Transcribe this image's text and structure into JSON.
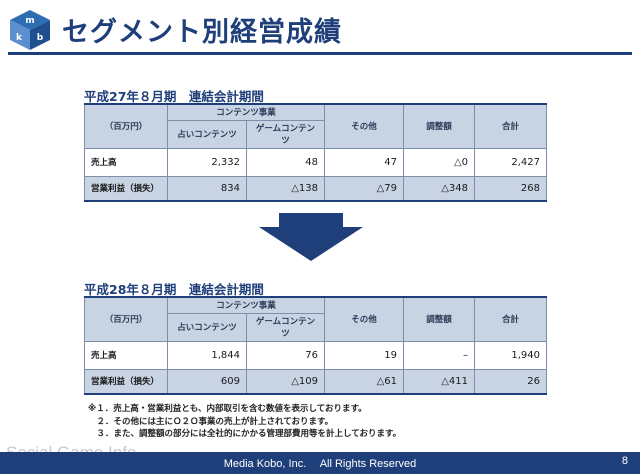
{
  "title": "セグメント別経営成績",
  "logo": {
    "icon": "mkb-cube-logo",
    "letters": [
      "m",
      "k",
      "b"
    ]
  },
  "tables": [
    {
      "heading": "平成27年８月期　連結会計期間",
      "unit": "（百万円）",
      "group_header": "コンテンツ事業",
      "columns": [
        "占いコンテンツ",
        "ゲームコンテンツ",
        "その他",
        "調整額",
        "合計"
      ],
      "rows": [
        {
          "label": "売上高",
          "values": [
            "2,332",
            "48",
            "47",
            "△0",
            "2,427"
          ]
        },
        {
          "label": "営業利益（損失）",
          "values": [
            "834",
            "△138",
            "△79",
            "△348",
            "268"
          ]
        }
      ]
    },
    {
      "heading": "平成28年８月期　連結会計期間",
      "unit": "（百万円）",
      "group_header": "コンテンツ事業",
      "columns": [
        "占いコンテンツ",
        "ゲームコンテンツ",
        "その他",
        "調整額",
        "合計"
      ],
      "rows": [
        {
          "label": "売上高",
          "values": [
            "1,844",
            "76",
            "19",
            "–",
            "1,940"
          ]
        },
        {
          "label": "営業利益（損失）",
          "values": [
            "609",
            "△109",
            "△61",
            "△411",
            "26"
          ]
        }
      ]
    }
  ],
  "notes": [
    "※１．売上高・営業利益とも、内部取引を含む数値を表示しております。",
    "　２．その他には主にＯ２Ｏ事業の売上が計上されております。",
    "　３．また、調整額の部分には全社的にかかる管理部費用等を計上しております。"
  ],
  "watermark": "Social Game Info",
  "footer": "Media Kobo, Inc.　 All Rights Reserved",
  "page_number": "8",
  "colors": {
    "brand": "#1f3f7a",
    "header_fill": "#c8d3e4",
    "arrow": "#1f3f7a"
  }
}
